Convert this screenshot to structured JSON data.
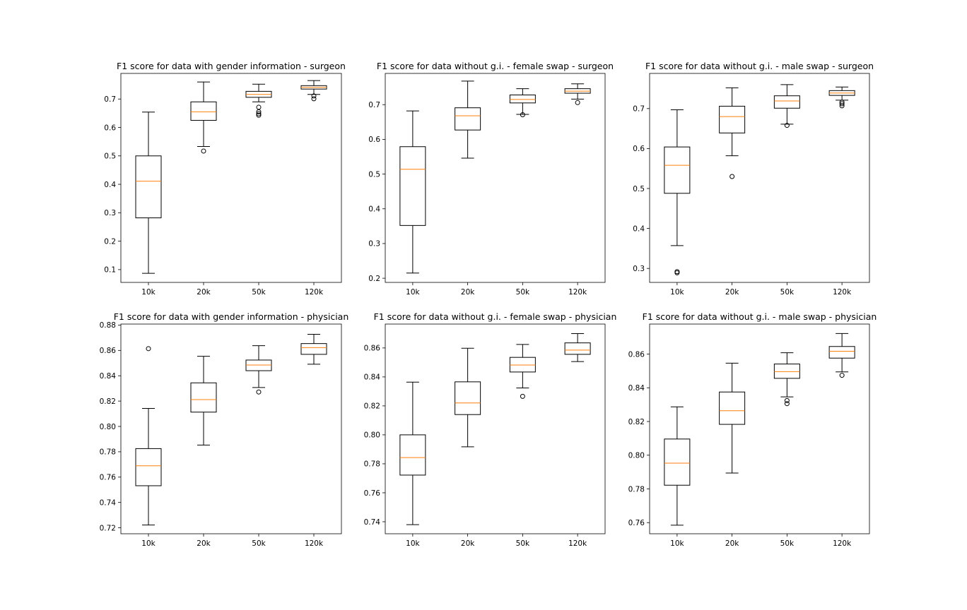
{
  "figure_title": "",
  "chart_data": [
    {
      "type": "boxplot",
      "title": "F1 score for data with gender information - surgeon",
      "categories": [
        "10k",
        "20k",
        "50k",
        "120k"
      ],
      "yticks": [
        "0.1",
        "0.2",
        "0.3",
        "0.4",
        "0.5",
        "0.6",
        "0.7"
      ],
      "ytick_values": [
        0.1,
        0.2,
        0.3,
        0.4,
        0.5,
        0.6,
        0.7
      ],
      "ylim": [
        0.055,
        0.79
      ],
      "boxes": [
        {
          "whislo": 0.087,
          "q1": 0.282,
          "med": 0.411,
          "q3": 0.5,
          "whishi": 0.654,
          "fliers": []
        },
        {
          "whislo": 0.533,
          "q1": 0.625,
          "med": 0.655,
          "q3": 0.69,
          "whishi": 0.76,
          "fliers": [
            0.517
          ]
        },
        {
          "whislo": 0.69,
          "q1": 0.706,
          "med": 0.716,
          "q3": 0.727,
          "whishi": 0.752,
          "fliers": [
            0.671,
            0.655,
            0.648,
            0.643
          ]
        },
        {
          "whislo": 0.716,
          "q1": 0.735,
          "med": 0.741,
          "q3": 0.747,
          "whishi": 0.765,
          "fliers": [
            0.711,
            0.701
          ]
        }
      ]
    },
    {
      "type": "boxplot",
      "title": "F1 score for data without g.i. - female swap - surgeon",
      "categories": [
        "10k",
        "20k",
        "50k",
        "120k"
      ],
      "yticks": [
        "0.2",
        "0.3",
        "0.4",
        "0.5",
        "0.6",
        "0.7"
      ],
      "ytick_values": [
        0.2,
        0.3,
        0.4,
        0.5,
        0.6,
        0.7
      ],
      "ylim": [
        0.188,
        0.79
      ],
      "boxes": [
        {
          "whislo": 0.215,
          "q1": 0.352,
          "med": 0.514,
          "q3": 0.579,
          "whishi": 0.682,
          "fliers": []
        },
        {
          "whislo": 0.546,
          "q1": 0.627,
          "med": 0.668,
          "q3": 0.691,
          "whishi": 0.768,
          "fliers": []
        },
        {
          "whislo": 0.672,
          "q1": 0.705,
          "med": 0.715,
          "q3": 0.728,
          "whishi": 0.746,
          "fliers": [
            0.671
          ]
        },
        {
          "whislo": 0.716,
          "q1": 0.733,
          "med": 0.739,
          "q3": 0.746,
          "whishi": 0.76,
          "fliers": [
            0.706
          ]
        }
      ]
    },
    {
      "type": "boxplot",
      "title": "F1 score for data without g.i. - male swap - surgeon",
      "categories": [
        "10k",
        "20k",
        "50k",
        "120k"
      ],
      "yticks": [
        "0.3",
        "0.4",
        "0.5",
        "0.6",
        "0.7"
      ],
      "ytick_values": [
        0.3,
        0.4,
        0.5,
        0.6,
        0.7
      ],
      "ylim": [
        0.265,
        0.788
      ],
      "boxes": [
        {
          "whislo": 0.357,
          "q1": 0.488,
          "med": 0.558,
          "q3": 0.604,
          "whishi": 0.697,
          "fliers": [
            0.292,
            0.289
          ]
        },
        {
          "whislo": 0.582,
          "q1": 0.639,
          "med": 0.68,
          "q3": 0.706,
          "whishi": 0.752,
          "fliers": [
            0.53
          ]
        },
        {
          "whislo": 0.661,
          "q1": 0.701,
          "med": 0.719,
          "q3": 0.732,
          "whishi": 0.76,
          "fliers": [
            0.658
          ]
        },
        {
          "whislo": 0.721,
          "q1": 0.733,
          "med": 0.739,
          "q3": 0.745,
          "whishi": 0.754,
          "fliers": [
            0.716,
            0.712,
            0.707
          ]
        }
      ]
    },
    {
      "type": "boxplot",
      "title": "F1 score for data with gender information - physician",
      "categories": [
        "10k",
        "20k",
        "50k",
        "120k"
      ],
      "yticks": [
        "0.72",
        "0.74",
        "0.76",
        "0.78",
        "0.80",
        "0.82",
        "0.84",
        "0.86",
        "0.88"
      ],
      "ytick_values": [
        0.72,
        0.74,
        0.76,
        0.78,
        0.8,
        0.82,
        0.84,
        0.86,
        0.88
      ],
      "ylim": [
        0.7153,
        0.8808
      ],
      "boxes": [
        {
          "whislo": 0.7222,
          "q1": 0.7532,
          "med": 0.7689,
          "q3": 0.7825,
          "whishi": 0.8142,
          "fliers": [
            0.8614
          ]
        },
        {
          "whislo": 0.7853,
          "q1": 0.8113,
          "med": 0.8212,
          "q3": 0.8344,
          "whishi": 0.8554,
          "fliers": []
        },
        {
          "whislo": 0.8307,
          "q1": 0.844,
          "med": 0.8485,
          "q3": 0.8524,
          "whishi": 0.8637,
          "fliers": [
            0.8272
          ]
        },
        {
          "whislo": 0.8491,
          "q1": 0.8569,
          "med": 0.8622,
          "q3": 0.8654,
          "whishi": 0.8727,
          "fliers": []
        }
      ]
    },
    {
      "type": "boxplot",
      "title": "F1 score for data without g.i. - female swap - physician",
      "categories": [
        "10k",
        "20k",
        "50k",
        "120k"
      ],
      "yticks": [
        "0.74",
        "0.76",
        "0.78",
        "0.80",
        "0.82",
        "0.84",
        "0.86"
      ],
      "ytick_values": [
        0.74,
        0.76,
        0.78,
        0.8,
        0.82,
        0.84,
        0.86
      ],
      "ylim": [
        0.7317,
        0.8765
      ],
      "boxes": [
        {
          "whislo": 0.738,
          "q1": 0.7722,
          "med": 0.7843,
          "q3": 0.8,
          "whishi": 0.8364,
          "fliers": []
        },
        {
          "whislo": 0.7917,
          "q1": 0.814,
          "med": 0.822,
          "q3": 0.8366,
          "whishi": 0.8598,
          "fliers": []
        },
        {
          "whislo": 0.8324,
          "q1": 0.8434,
          "med": 0.8482,
          "q3": 0.8535,
          "whishi": 0.8624,
          "fliers": [
            0.8266
          ]
        },
        {
          "whislo": 0.8506,
          "q1": 0.8556,
          "med": 0.8585,
          "q3": 0.8635,
          "whishi": 0.8699,
          "fliers": []
        }
      ]
    },
    {
      "type": "boxplot",
      "title": "F1 score for data without g.i. - male swap - physician",
      "categories": [
        "10k",
        "20k",
        "50k",
        "120k"
      ],
      "yticks": [
        "0.76",
        "0.78",
        "0.80",
        "0.82",
        "0.84",
        "0.86"
      ],
      "ytick_values": [
        0.76,
        0.78,
        0.8,
        0.82,
        0.84,
        0.86
      ],
      "ylim": [
        0.7534,
        0.8778
      ],
      "boxes": [
        {
          "whislo": 0.7585,
          "q1": 0.7822,
          "med": 0.7953,
          "q3": 0.8096,
          "whishi": 0.8287,
          "fliers": []
        },
        {
          "whislo": 0.7894,
          "q1": 0.8183,
          "med": 0.8264,
          "q3": 0.8375,
          "whishi": 0.8546,
          "fliers": []
        },
        {
          "whislo": 0.8346,
          "q1": 0.8456,
          "med": 0.8496,
          "q3": 0.8541,
          "whishi": 0.8608,
          "fliers": [
            0.8324,
            0.8306
          ]
        },
        {
          "whislo": 0.8494,
          "q1": 0.8576,
          "med": 0.8617,
          "q3": 0.8645,
          "whishi": 0.8722,
          "fliers": [
            0.8474
          ]
        }
      ]
    }
  ],
  "colors": {
    "median": "#ff7f0e",
    "box": "#000000",
    "axes": "#000000",
    "background": "#ffffff"
  }
}
